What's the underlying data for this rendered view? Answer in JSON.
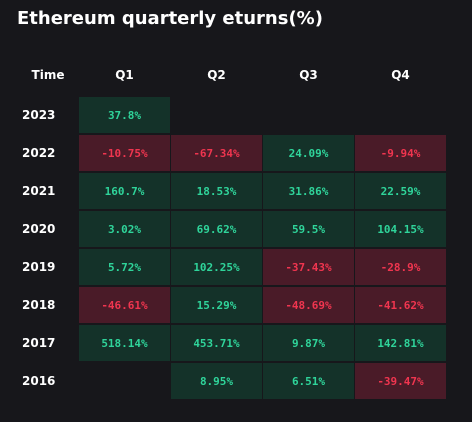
{
  "title": "Ethereum quarterly eturns(%)",
  "columns": [
    "Time",
    "Q1",
    "Q2",
    "Q3",
    "Q4"
  ],
  "colors": {
    "background": "#17171b",
    "positive_bg": "#143229",
    "positive_text": "#2fd49a",
    "negative_bg": "#4a1b28",
    "negative_text": "#f0354f"
  },
  "rows": [
    {
      "year": "2023",
      "values": [
        "37.8%",
        "",
        "",
        ""
      ]
    },
    {
      "year": "2022",
      "values": [
        "-10.75%",
        "-67.34%",
        "24.09%",
        "-9.94%"
      ]
    },
    {
      "year": "2021",
      "values": [
        "160.7%",
        "18.53%",
        "31.86%",
        "22.59%"
      ]
    },
    {
      "year": "2020",
      "values": [
        "3.02%",
        "69.62%",
        "59.5%",
        "104.15%"
      ]
    },
    {
      "year": "2019",
      "values": [
        "5.72%",
        "102.25%",
        "-37.43%",
        "-28.9%"
      ]
    },
    {
      "year": "2018",
      "values": [
        "-46.61%",
        "15.29%",
        "-48.69%",
        "-41.62%"
      ]
    },
    {
      "year": "2017",
      "values": [
        "518.14%",
        "453.71%",
        "9.87%",
        "142.81%"
      ]
    },
    {
      "year": "2016",
      "values": [
        "",
        "8.95%",
        "6.51%",
        "-39.47%"
      ]
    }
  ]
}
